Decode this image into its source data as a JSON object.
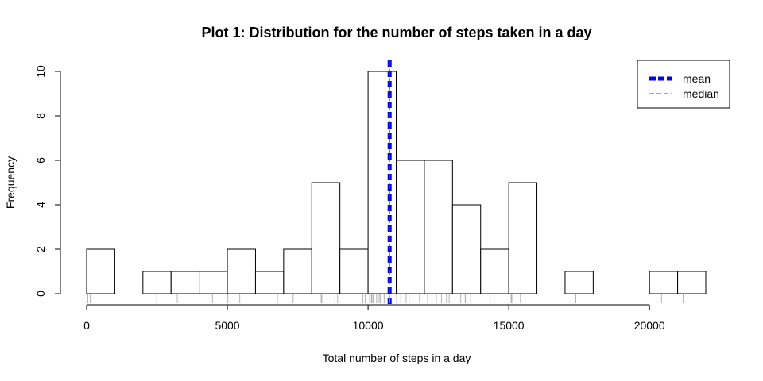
{
  "chart_data": {
    "type": "bar",
    "title": "Plot 1: Distribution for the number of steps taken in a day",
    "xlabel": "Total number of steps in a day",
    "ylabel": "Frequency",
    "bin_width": 1000,
    "bins": [
      {
        "x0": 0,
        "x1": 1000,
        "count": 2
      },
      {
        "x0": 1000,
        "x1": 2000,
        "count": 0
      },
      {
        "x0": 2000,
        "x1": 3000,
        "count": 1
      },
      {
        "x0": 3000,
        "x1": 4000,
        "count": 1
      },
      {
        "x0": 4000,
        "x1": 5000,
        "count": 1
      },
      {
        "x0": 5000,
        "x1": 6000,
        "count": 2
      },
      {
        "x0": 6000,
        "x1": 7000,
        "count": 1
      },
      {
        "x0": 7000,
        "x1": 8000,
        "count": 2
      },
      {
        "x0": 8000,
        "x1": 9000,
        "count": 5
      },
      {
        "x0": 9000,
        "x1": 10000,
        "count": 2
      },
      {
        "x0": 10000,
        "x1": 11000,
        "count": 10
      },
      {
        "x0": 11000,
        "x1": 12000,
        "count": 6
      },
      {
        "x0": 12000,
        "x1": 13000,
        "count": 6
      },
      {
        "x0": 13000,
        "x1": 14000,
        "count": 4
      },
      {
        "x0": 14000,
        "x1": 15000,
        "count": 2
      },
      {
        "x0": 15000,
        "x1": 16000,
        "count": 5
      },
      {
        "x0": 16000,
        "x1": 17000,
        "count": 0
      },
      {
        "x0": 17000,
        "x1": 18000,
        "count": 1
      },
      {
        "x0": 18000,
        "x1": 19000,
        "count": 0
      },
      {
        "x0": 19000,
        "x1": 20000,
        "count": 0
      },
      {
        "x0": 20000,
        "x1": 21000,
        "count": 1
      },
      {
        "x0": 21000,
        "x1": 22000,
        "count": 1
      }
    ],
    "xlim": [
      0,
      22000
    ],
    "ylim": [
      0,
      10
    ],
    "xticks": [
      0,
      5000,
      10000,
      15000,
      20000
    ],
    "yticks": [
      0,
      2,
      4,
      6,
      8,
      10
    ],
    "rug": [
      41,
      126,
      2492,
      3219,
      4472,
      5018,
      5441,
      6778,
      7047,
      7336,
      8334,
      8355,
      8821,
      8918,
      9819,
      9900,
      10056,
      10119,
      10139,
      10183,
      10304,
      10395,
      10439,
      10571,
      10600,
      10765,
      11015,
      11162,
      11352,
      11458,
      11829,
      11834,
      12116,
      12426,
      12608,
      12787,
      12811,
      12883,
      13294,
      13452,
      13460,
      13646,
      14339,
      14478,
      15084,
      15098,
      15110,
      15414,
      17382,
      20427,
      21194
    ],
    "mean": 10766.19,
    "median": 10765,
    "lines": [
      {
        "name": "mean",
        "value": 10766.19,
        "color": "#0000ff",
        "style": "dashed-thick"
      },
      {
        "name": "median",
        "value": 10765,
        "color": "#ff0000",
        "style": "dashed-thin"
      }
    ],
    "legend": {
      "position": "top-right",
      "entries": [
        {
          "label": "mean",
          "color": "#0000ff"
        },
        {
          "label": "median",
          "color": "#ff0000"
        }
      ]
    },
    "grid": false
  }
}
